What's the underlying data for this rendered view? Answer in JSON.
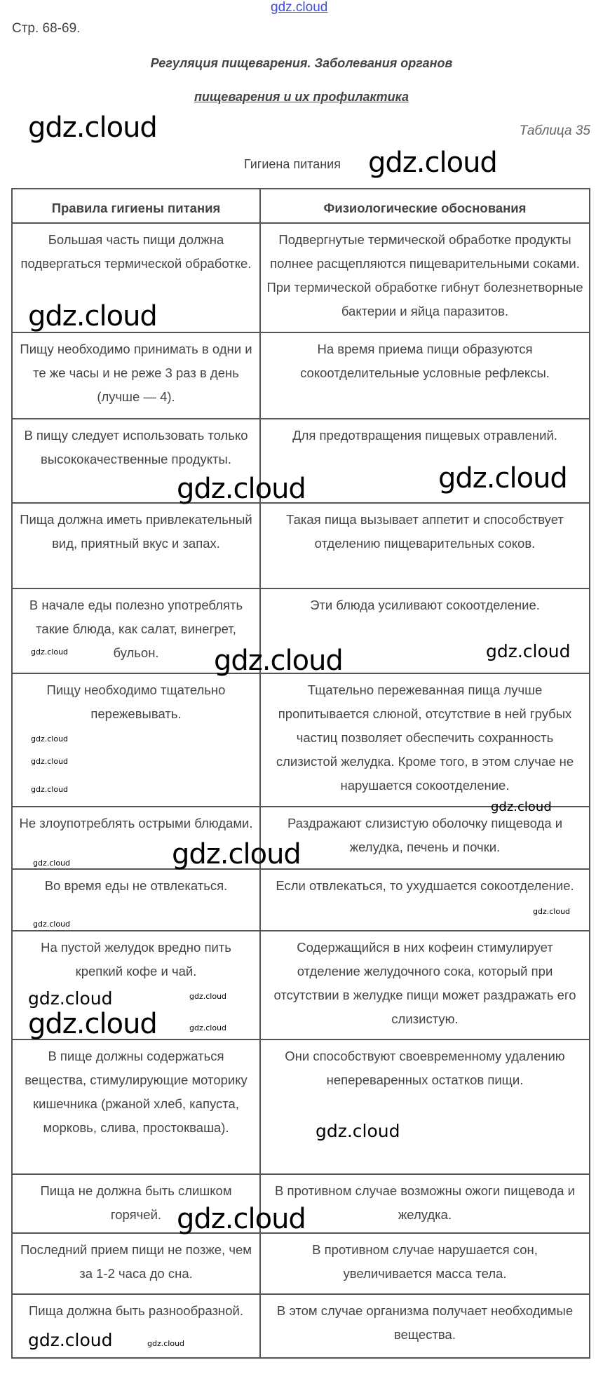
{
  "header": {
    "site_link": "gdz.cloud",
    "page_ref": "Стр. 68-69.",
    "title_line1": "Регуляция пищеварения. Заболевания органов",
    "title_line2": "пищеварения и их профилактика",
    "table_number": "Таблица 35",
    "table_caption": "Гигиена питания"
  },
  "table": {
    "columns": [
      "Правила гигиены питания",
      "Физиологические обоснования"
    ],
    "rows": [
      [
        "Большая часть пищи должна подвергаться термической обработке.",
        "Подвергнутые термической обработке продукты полнее расщепляются пищеварительными соками. При термической обработке гибнут болезнетворные бактерии и яйца паразитов."
      ],
      [
        "Пищу необходимо принимать в одни и те же часы и не реже 3 раз в день (лучше — 4).",
        "На время приема пищи образуются сокоотделительные условные рефлексы."
      ],
      [
        "В пищу следует использовать только высококачественные продукты.",
        "Для предотвращения пищевых отравлений."
      ],
      [
        "Пища должна иметь привлекательный вид, приятный вкус и запах.",
        "Такая пища вызывает аппетит и способствует отделению пищеварительных соков."
      ],
      [
        "В начале еды полезно употреблять такие блюда, как салат, винегрет, бульон.",
        "Эти блюда усиливают сокоотделение."
      ],
      [
        "Пищу необходимо тщательно пережевывать.",
        "Тщательно пережеванная пища лучше пропитывается слюной, отсутствие в ней грубых частиц позволяет обеспечить сохранность слизистой желудка. Кроме того, в этом случае не нарушается сокоотделение."
      ],
      [
        "Не злоупотреблять острыми блюдами.",
        "Раздражают слизистую оболочку пищевода и желудка, печень и почки."
      ],
      [
        "Во время еды не отвлекаться.",
        "Если отвлекаться, то ухудшается сокоотделение."
      ],
      [
        "На пустой желудок вредно пить крепкий кофе и чай.",
        "Содержащийся в них кофеин стимулирует отделение желудочного сока, который при отсутствии в желудке пищи может раздражать его слизистую."
      ],
      [
        "В пище должны содержаться вещества, стимулирующие моторику кишечника (ржаной хлеб, капуста, морковь, слива, простокваша).",
        "Они способствуют своевременному удалению непереваренных остатков пищи."
      ],
      [
        "Пища не должна быть слишком горячей.",
        "В противном случае возможны ожоги пищевода и желудка."
      ],
      [
        "Последний прием пищи не позже, чем за 1-2 часа до сна.",
        "В противном случае нарушается сон, увеличивается масса тела."
      ],
      [
        "Пища должна быть разнообразной.",
        "В этом случае организма получает необходимые вещества."
      ]
    ]
  },
  "watermark": "gdz.cloud"
}
